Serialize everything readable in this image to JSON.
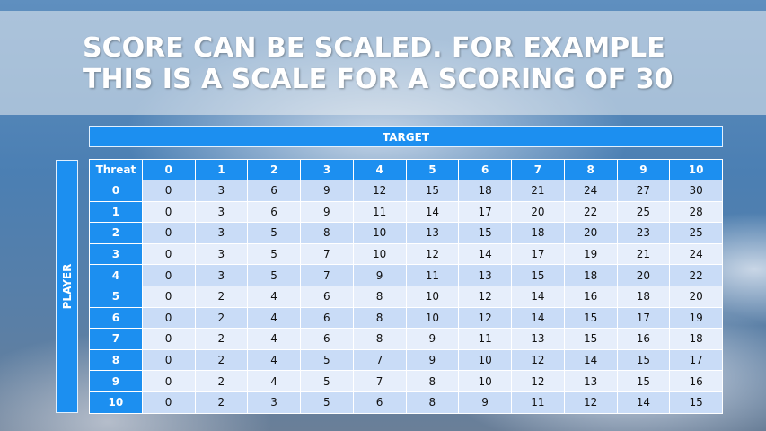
{
  "title": {
    "line1": "SCORE CAN BE SCALED. FOR EXAMPLE",
    "line2": "THIS IS A SCALE FOR A SCORING OF 30"
  },
  "target_label": "TARGET",
  "player_label": "PLAYER",
  "table": {
    "corner": "Threat",
    "columns": [
      "0",
      "1",
      "2",
      "3",
      "4",
      "5",
      "6",
      "7",
      "8",
      "9",
      "10"
    ],
    "rows": [
      {
        "label": "0",
        "values": [
          "0",
          "3",
          "6",
          "9",
          "12",
          "15",
          "18",
          "21",
          "24",
          "27",
          "30"
        ]
      },
      {
        "label": "1",
        "values": [
          "0",
          "3",
          "6",
          "9",
          "11",
          "14",
          "17",
          "20",
          "22",
          "25",
          "28"
        ]
      },
      {
        "label": "2",
        "values": [
          "0",
          "3",
          "5",
          "8",
          "10",
          "13",
          "15",
          "18",
          "20",
          "23",
          "25"
        ]
      },
      {
        "label": "3",
        "values": [
          "0",
          "3",
          "5",
          "7",
          "10",
          "12",
          "14",
          "17",
          "19",
          "21",
          "24"
        ]
      },
      {
        "label": "4",
        "values": [
          "0",
          "3",
          "5",
          "7",
          "9",
          "11",
          "13",
          "15",
          "18",
          "20",
          "22"
        ]
      },
      {
        "label": "5",
        "values": [
          "0",
          "2",
          "4",
          "6",
          "8",
          "10",
          "12",
          "14",
          "16",
          "18",
          "20"
        ]
      },
      {
        "label": "6",
        "values": [
          "0",
          "2",
          "4",
          "6",
          "8",
          "10",
          "12",
          "14",
          "15",
          "17",
          "19"
        ]
      },
      {
        "label": "7",
        "values": [
          "0",
          "2",
          "4",
          "6",
          "8",
          "9",
          "11",
          "13",
          "15",
          "16",
          "18"
        ]
      },
      {
        "label": "8",
        "values": [
          "0",
          "2",
          "4",
          "5",
          "7",
          "9",
          "10",
          "12",
          "14",
          "15",
          "17"
        ]
      },
      {
        "label": "9",
        "values": [
          "0",
          "2",
          "4",
          "5",
          "7",
          "8",
          "10",
          "12",
          "13",
          "15",
          "16"
        ]
      },
      {
        "label": "10",
        "values": [
          "0",
          "2",
          "3",
          "5",
          "6",
          "8",
          "9",
          "11",
          "12",
          "14",
          "15"
        ]
      }
    ]
  },
  "colors": {
    "header_blue": "#1c8ff0",
    "row_dark": "#c9dcf7",
    "row_light": "#e6eefb"
  }
}
